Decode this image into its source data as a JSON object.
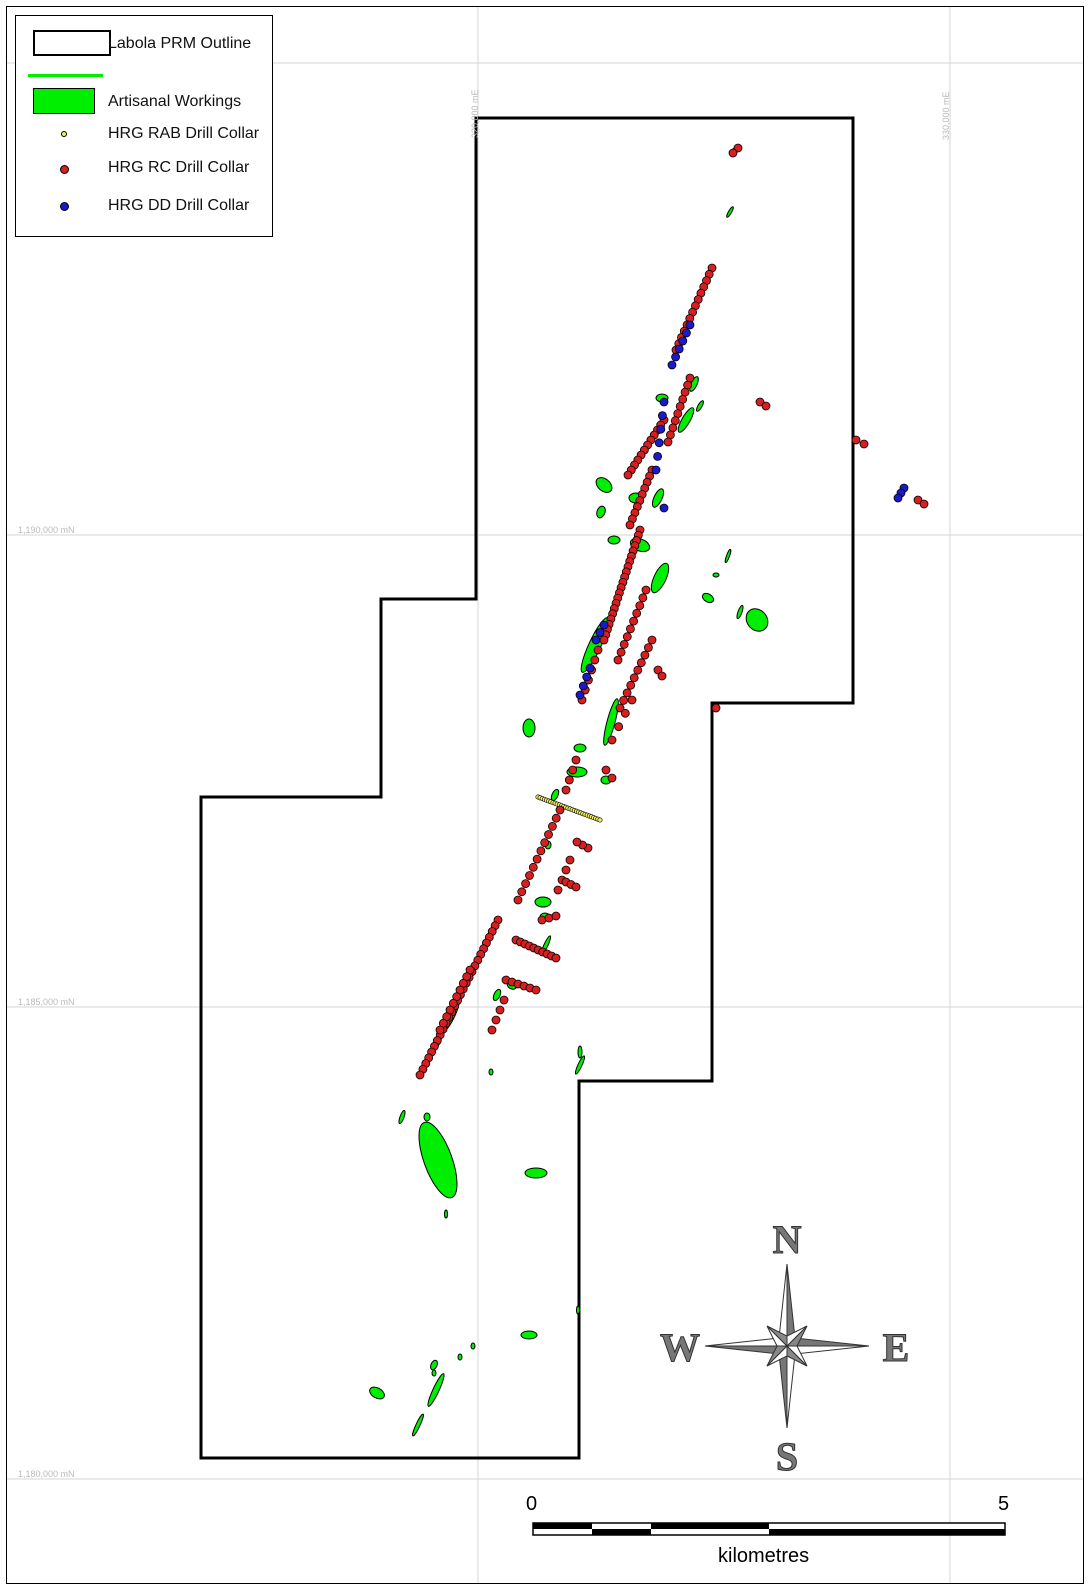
{
  "legend": {
    "prm_outline": "Labola PRM Outline",
    "artisanal": "Artisanal Workings",
    "rab": "HRG RAB Drill Collar",
    "rc": "HRG RC Drill Collar",
    "dd": "HRG DD Drill Collar"
  },
  "grid": {
    "easting_1": "320,000 mE",
    "easting_2": "330,000 mE",
    "northing_1": "1,190,000 mN",
    "northing_2": "1,185,000 mN",
    "northing_3": "1,180,000 mN"
  },
  "compass": {
    "n": "N",
    "s": "S",
    "e": "E",
    "w": "W"
  },
  "scale": {
    "start": "0",
    "end": "5",
    "unit": "kilometres"
  },
  "colors": {
    "outline": "#000000",
    "artisanal": "#00ee00",
    "rc": "#d81e1e",
    "dd": "#1a1acc",
    "rab": "#eeee66",
    "grid": "#d0d0d0"
  }
}
